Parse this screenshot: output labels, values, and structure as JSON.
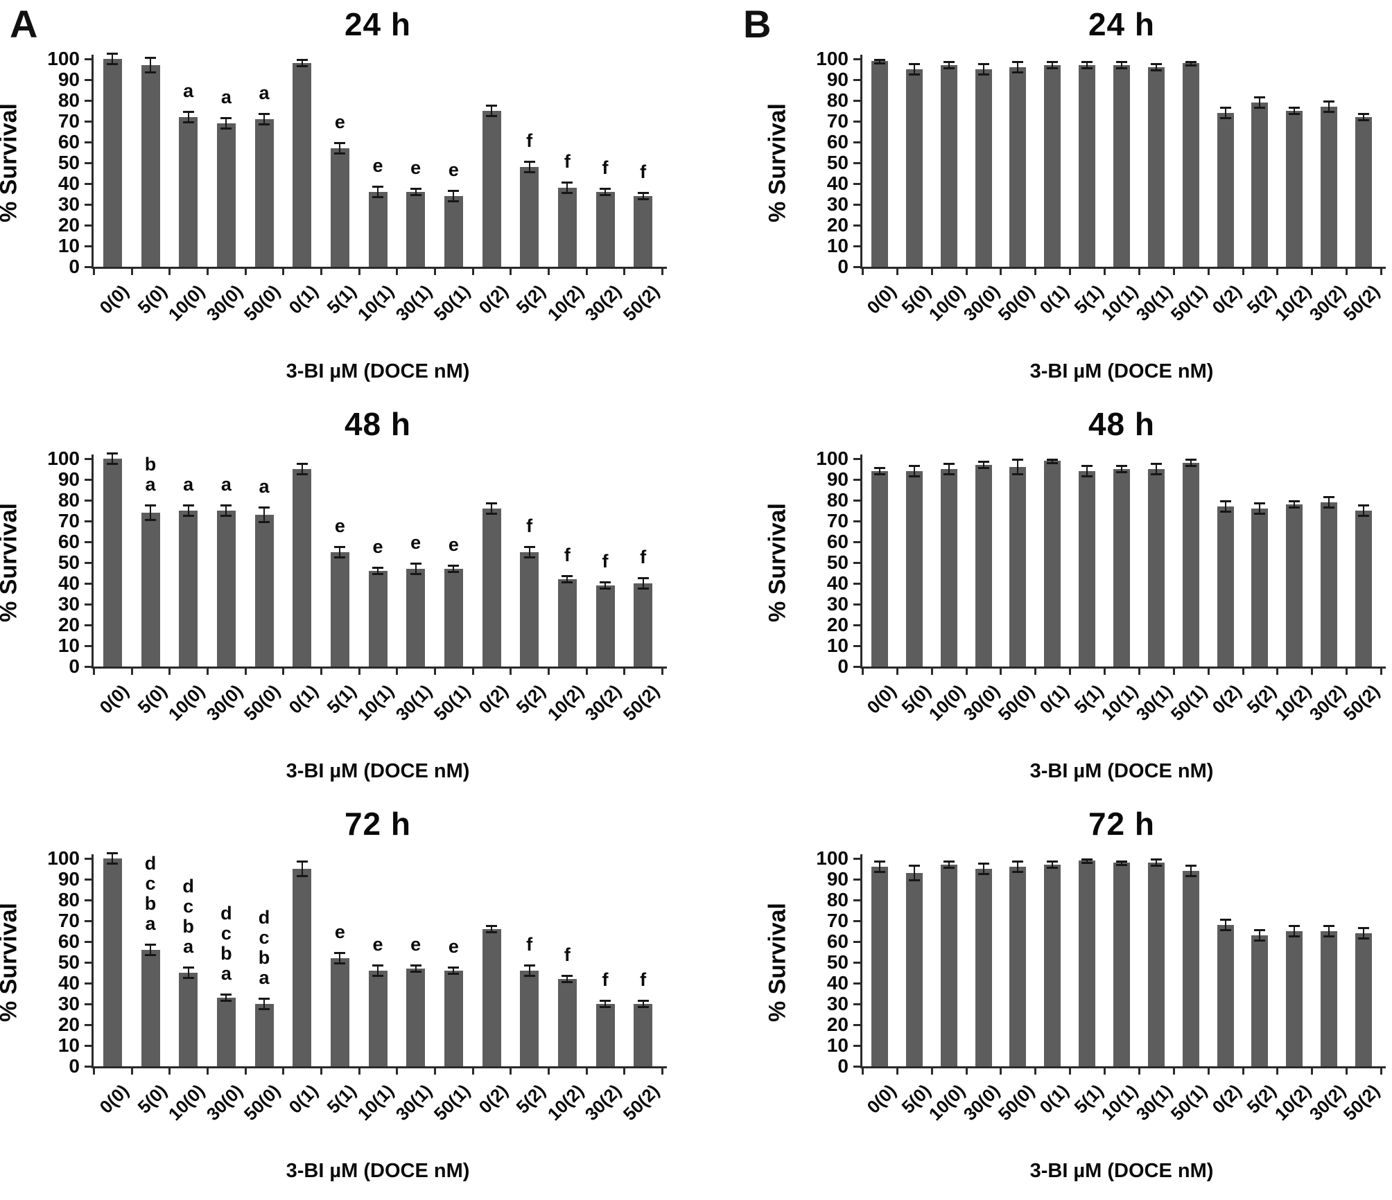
{
  "panel_labels": [
    "A",
    "B"
  ],
  "chart_data": [
    {
      "panel": "A",
      "type": "bar",
      "title": "24 h",
      "ylabel": "% Survival",
      "xlabel": "3-BI µM (DOCE nM)",
      "ylim": [
        0,
        100
      ],
      "yticks": [
        0,
        10,
        20,
        30,
        40,
        50,
        60,
        70,
        80,
        90,
        100
      ],
      "grid": false,
      "bar_color": "#5d5d5d",
      "categories": [
        "0(0)",
        "5(0)",
        "10(0)",
        "30(0)",
        "50(0)",
        "0(1)",
        "5(1)",
        "10(1)",
        "30(1)",
        "50(1)",
        "0(2)",
        "5(2)",
        "10(2)",
        "30(2)",
        "50(2)"
      ],
      "values": [
        100,
        97,
        72,
        69,
        71,
        98,
        57,
        36,
        36,
        34,
        75,
        48,
        38,
        36,
        34
      ],
      "errors": [
        3,
        4,
        3,
        3,
        3,
        2,
        3,
        3,
        2,
        3,
        3,
        3,
        3,
        2,
        2
      ],
      "letters": [
        [],
        [],
        [
          "a"
        ],
        [
          "a"
        ],
        [
          "a"
        ],
        [],
        [
          "e"
        ],
        [
          "e"
        ],
        [
          "e"
        ],
        [
          "e"
        ],
        [],
        [
          "f"
        ],
        [
          "f"
        ],
        [
          "f"
        ],
        [
          "f"
        ]
      ]
    },
    {
      "panel": "B",
      "type": "bar",
      "title": "24 h",
      "ylabel": "% Survival",
      "xlabel": "3-BI µM (DOCE nM)",
      "ylim": [
        0,
        100
      ],
      "yticks": [
        0,
        10,
        20,
        30,
        40,
        50,
        60,
        70,
        80,
        90,
        100
      ],
      "grid": false,
      "bar_color": "#5d5d5d",
      "categories": [
        "0(0)",
        "5(0)",
        "10(0)",
        "30(0)",
        "50(0)",
        "0(1)",
        "5(1)",
        "10(1)",
        "30(1)",
        "50(1)",
        "0(2)",
        "5(2)",
        "10(2)",
        "30(2)",
        "50(2)"
      ],
      "values": [
        99,
        95,
        97,
        95,
        96,
        97,
        97,
        97,
        96,
        98,
        74,
        79,
        75,
        77,
        72
      ],
      "errors": [
        1,
        3,
        2,
        3,
        3,
        2,
        2,
        2,
        2,
        1,
        3,
        3,
        2,
        3,
        2
      ],
      "letters": [
        [],
        [],
        [],
        [],
        [],
        [],
        [],
        [],
        [],
        [],
        [],
        [],
        [],
        [],
        []
      ]
    },
    {
      "panel": "A",
      "type": "bar",
      "title": "48 h",
      "ylabel": "% Survival",
      "xlabel": "3-BI µM (DOCE nM)",
      "ylim": [
        0,
        100
      ],
      "yticks": [
        0,
        10,
        20,
        30,
        40,
        50,
        60,
        70,
        80,
        90,
        100
      ],
      "grid": false,
      "bar_color": "#5d5d5d",
      "categories": [
        "0(0)",
        "5(0)",
        "10(0)",
        "30(0)",
        "50(0)",
        "0(1)",
        "5(1)",
        "10(1)",
        "30(1)",
        "50(1)",
        "0(2)",
        "5(2)",
        "10(2)",
        "30(2)",
        "50(2)"
      ],
      "values": [
        100,
        74,
        75,
        75,
        73,
        95,
        55,
        46,
        47,
        47,
        76,
        55,
        42,
        39,
        40
      ],
      "errors": [
        3,
        4,
        3,
        3,
        4,
        3,
        3,
        2,
        3,
        2,
        3,
        3,
        2,
        2,
        3
      ],
      "letters": [
        [],
        [
          "b",
          "a"
        ],
        [
          "a"
        ],
        [
          "a"
        ],
        [
          "a"
        ],
        [],
        [
          "e"
        ],
        [
          "e"
        ],
        [
          "e"
        ],
        [
          "e"
        ],
        [],
        [
          "f"
        ],
        [
          "f"
        ],
        [
          "f"
        ],
        [
          "f"
        ]
      ]
    },
    {
      "panel": "B",
      "type": "bar",
      "title": "48 h",
      "ylabel": "% Survival",
      "xlabel": "3-BI µM (DOCE nM)",
      "ylim": [
        0,
        100
      ],
      "yticks": [
        0,
        10,
        20,
        30,
        40,
        50,
        60,
        70,
        80,
        90,
        100
      ],
      "grid": false,
      "bar_color": "#5d5d5d",
      "categories": [
        "0(0)",
        "5(0)",
        "10(0)",
        "30(0)",
        "50(0)",
        "0(1)",
        "5(1)",
        "10(1)",
        "30(1)",
        "50(1)",
        "0(2)",
        "5(2)",
        "10(2)",
        "30(2)",
        "50(2)"
      ],
      "values": [
        94,
        94,
        95,
        97,
        96,
        99,
        94,
        95,
        95,
        98,
        77,
        76,
        78,
        79,
        75
      ],
      "errors": [
        2,
        3,
        3,
        2,
        4,
        1,
        3,
        2,
        3,
        2,
        3,
        3,
        2,
        3,
        3
      ],
      "letters": [
        [],
        [],
        [],
        [],
        [],
        [],
        [],
        [],
        [],
        [],
        [],
        [],
        [],
        [],
        []
      ]
    },
    {
      "panel": "A",
      "type": "bar",
      "title": "72 h",
      "ylabel": "% Survival",
      "xlabel": "3-BI µM (DOCE nM)",
      "ylim": [
        0,
        100
      ],
      "yticks": [
        0,
        10,
        20,
        30,
        40,
        50,
        60,
        70,
        80,
        90,
        100
      ],
      "grid": false,
      "bar_color": "#5d5d5d",
      "categories": [
        "0(0)",
        "5(0)",
        "10(0)",
        "30(0)",
        "50(0)",
        "0(1)",
        "5(1)",
        "10(1)",
        "30(1)",
        "50(1)",
        "0(2)",
        "5(2)",
        "10(2)",
        "30(2)",
        "50(2)"
      ],
      "values": [
        100,
        56,
        45,
        33,
        30,
        95,
        52,
        46,
        47,
        46,
        66,
        46,
        42,
        30,
        30
      ],
      "errors": [
        3,
        3,
        3,
        2,
        3,
        4,
        3,
        3,
        2,
        2,
        2,
        3,
        2,
        2,
        2
      ],
      "letters": [
        [],
        [
          "d",
          "c",
          "b",
          "a"
        ],
        [
          "d",
          "c",
          "b",
          "a"
        ],
        [
          "d",
          "c",
          "b",
          "a"
        ],
        [
          "d",
          "c",
          "b",
          "a"
        ],
        [],
        [
          "e"
        ],
        [
          "e"
        ],
        [
          "e"
        ],
        [
          "e"
        ],
        [],
        [
          "f"
        ],
        [
          "f"
        ],
        [
          "f"
        ],
        [
          "f"
        ]
      ]
    },
    {
      "panel": "B",
      "type": "bar",
      "title": "72 h",
      "ylabel": "% Survival",
      "xlabel": "3-BI µM (DOCE nM)",
      "ylim": [
        0,
        100
      ],
      "yticks": [
        0,
        10,
        20,
        30,
        40,
        50,
        60,
        70,
        80,
        90,
        100
      ],
      "grid": false,
      "bar_color": "#5d5d5d",
      "categories": [
        "0(0)",
        "5(0)",
        "10(0)",
        "30(0)",
        "50(0)",
        "0(1)",
        "5(1)",
        "10(1)",
        "30(1)",
        "50(1)",
        "0(2)",
        "5(2)",
        "10(2)",
        "30(2)",
        "50(2)"
      ],
      "values": [
        96,
        93,
        97,
        95,
        96,
        97,
        99,
        98,
        98,
        94,
        68,
        63,
        65,
        65,
        64
      ],
      "errors": [
        3,
        4,
        2,
        3,
        3,
        2,
        1,
        1,
        2,
        3,
        3,
        3,
        3,
        3,
        3
      ],
      "letters": [
        [],
        [],
        [],
        [],
        [],
        [],
        [],
        [],
        [],
        [],
        [],
        [],
        [],
        [],
        []
      ]
    }
  ]
}
